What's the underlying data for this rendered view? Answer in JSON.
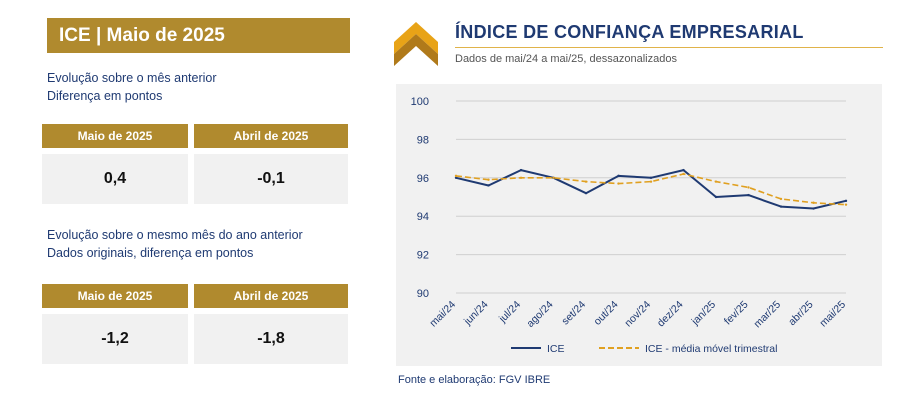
{
  "left_panel": {
    "title": "ICE | Maio de 2025",
    "section1": {
      "line1": "Evolução sobre o mês anterior",
      "line2": "Diferença em pontos",
      "headers": [
        "Maio de 2025",
        "Abril de 2025"
      ],
      "values": [
        "0,4",
        "-0,1"
      ]
    },
    "section2": {
      "line1": "Evolução sobre o mesmo mês do ano anterior",
      "line2": "Dados originais, diferença em pontos",
      "headers": [
        "Maio de 2025",
        "Abril de 2025"
      ],
      "values": [
        "-1,2",
        "-1,8"
      ]
    }
  },
  "chart_panel": {
    "title": "ÍNDICE DE CONFIANÇA EMPRESARIAL",
    "subtitle": "Dados de mai/24 a mai/25, dessazonalizados",
    "source": "Fonte e elaboração: FGV IBRE"
  },
  "colors": {
    "gold": "#b08a2e",
    "navy": "#1f3a72",
    "ice_line": "#1f3a72",
    "mm_line": "#e0a020",
    "plot_bg": "#f1f1f1"
  },
  "chart_data": {
    "type": "line",
    "categories": [
      "mai/24",
      "jun/24",
      "jul/24",
      "ago/24",
      "set/24",
      "out/24",
      "nov/24",
      "dez/24",
      "jan/25",
      "fev/25",
      "mar/25",
      "abr/25",
      "mai/25"
    ],
    "series": [
      {
        "name": "ICE",
        "values": [
          96.0,
          95.6,
          96.4,
          96.0,
          95.2,
          96.1,
          96.0,
          96.4,
          95.0,
          95.1,
          94.5,
          94.4,
          94.8
        ]
      },
      {
        "name": "ICE - média móvel trimestral",
        "values": [
          96.1,
          95.9,
          96.0,
          96.0,
          95.8,
          95.7,
          95.8,
          96.2,
          95.8,
          95.5,
          94.9,
          94.7,
          94.6
        ]
      }
    ],
    "yticks": [
      "100",
      "98",
      "96",
      "94",
      "92",
      "90"
    ],
    "ylim": [
      90,
      100
    ],
    "grid": true,
    "legend": "bottom"
  }
}
